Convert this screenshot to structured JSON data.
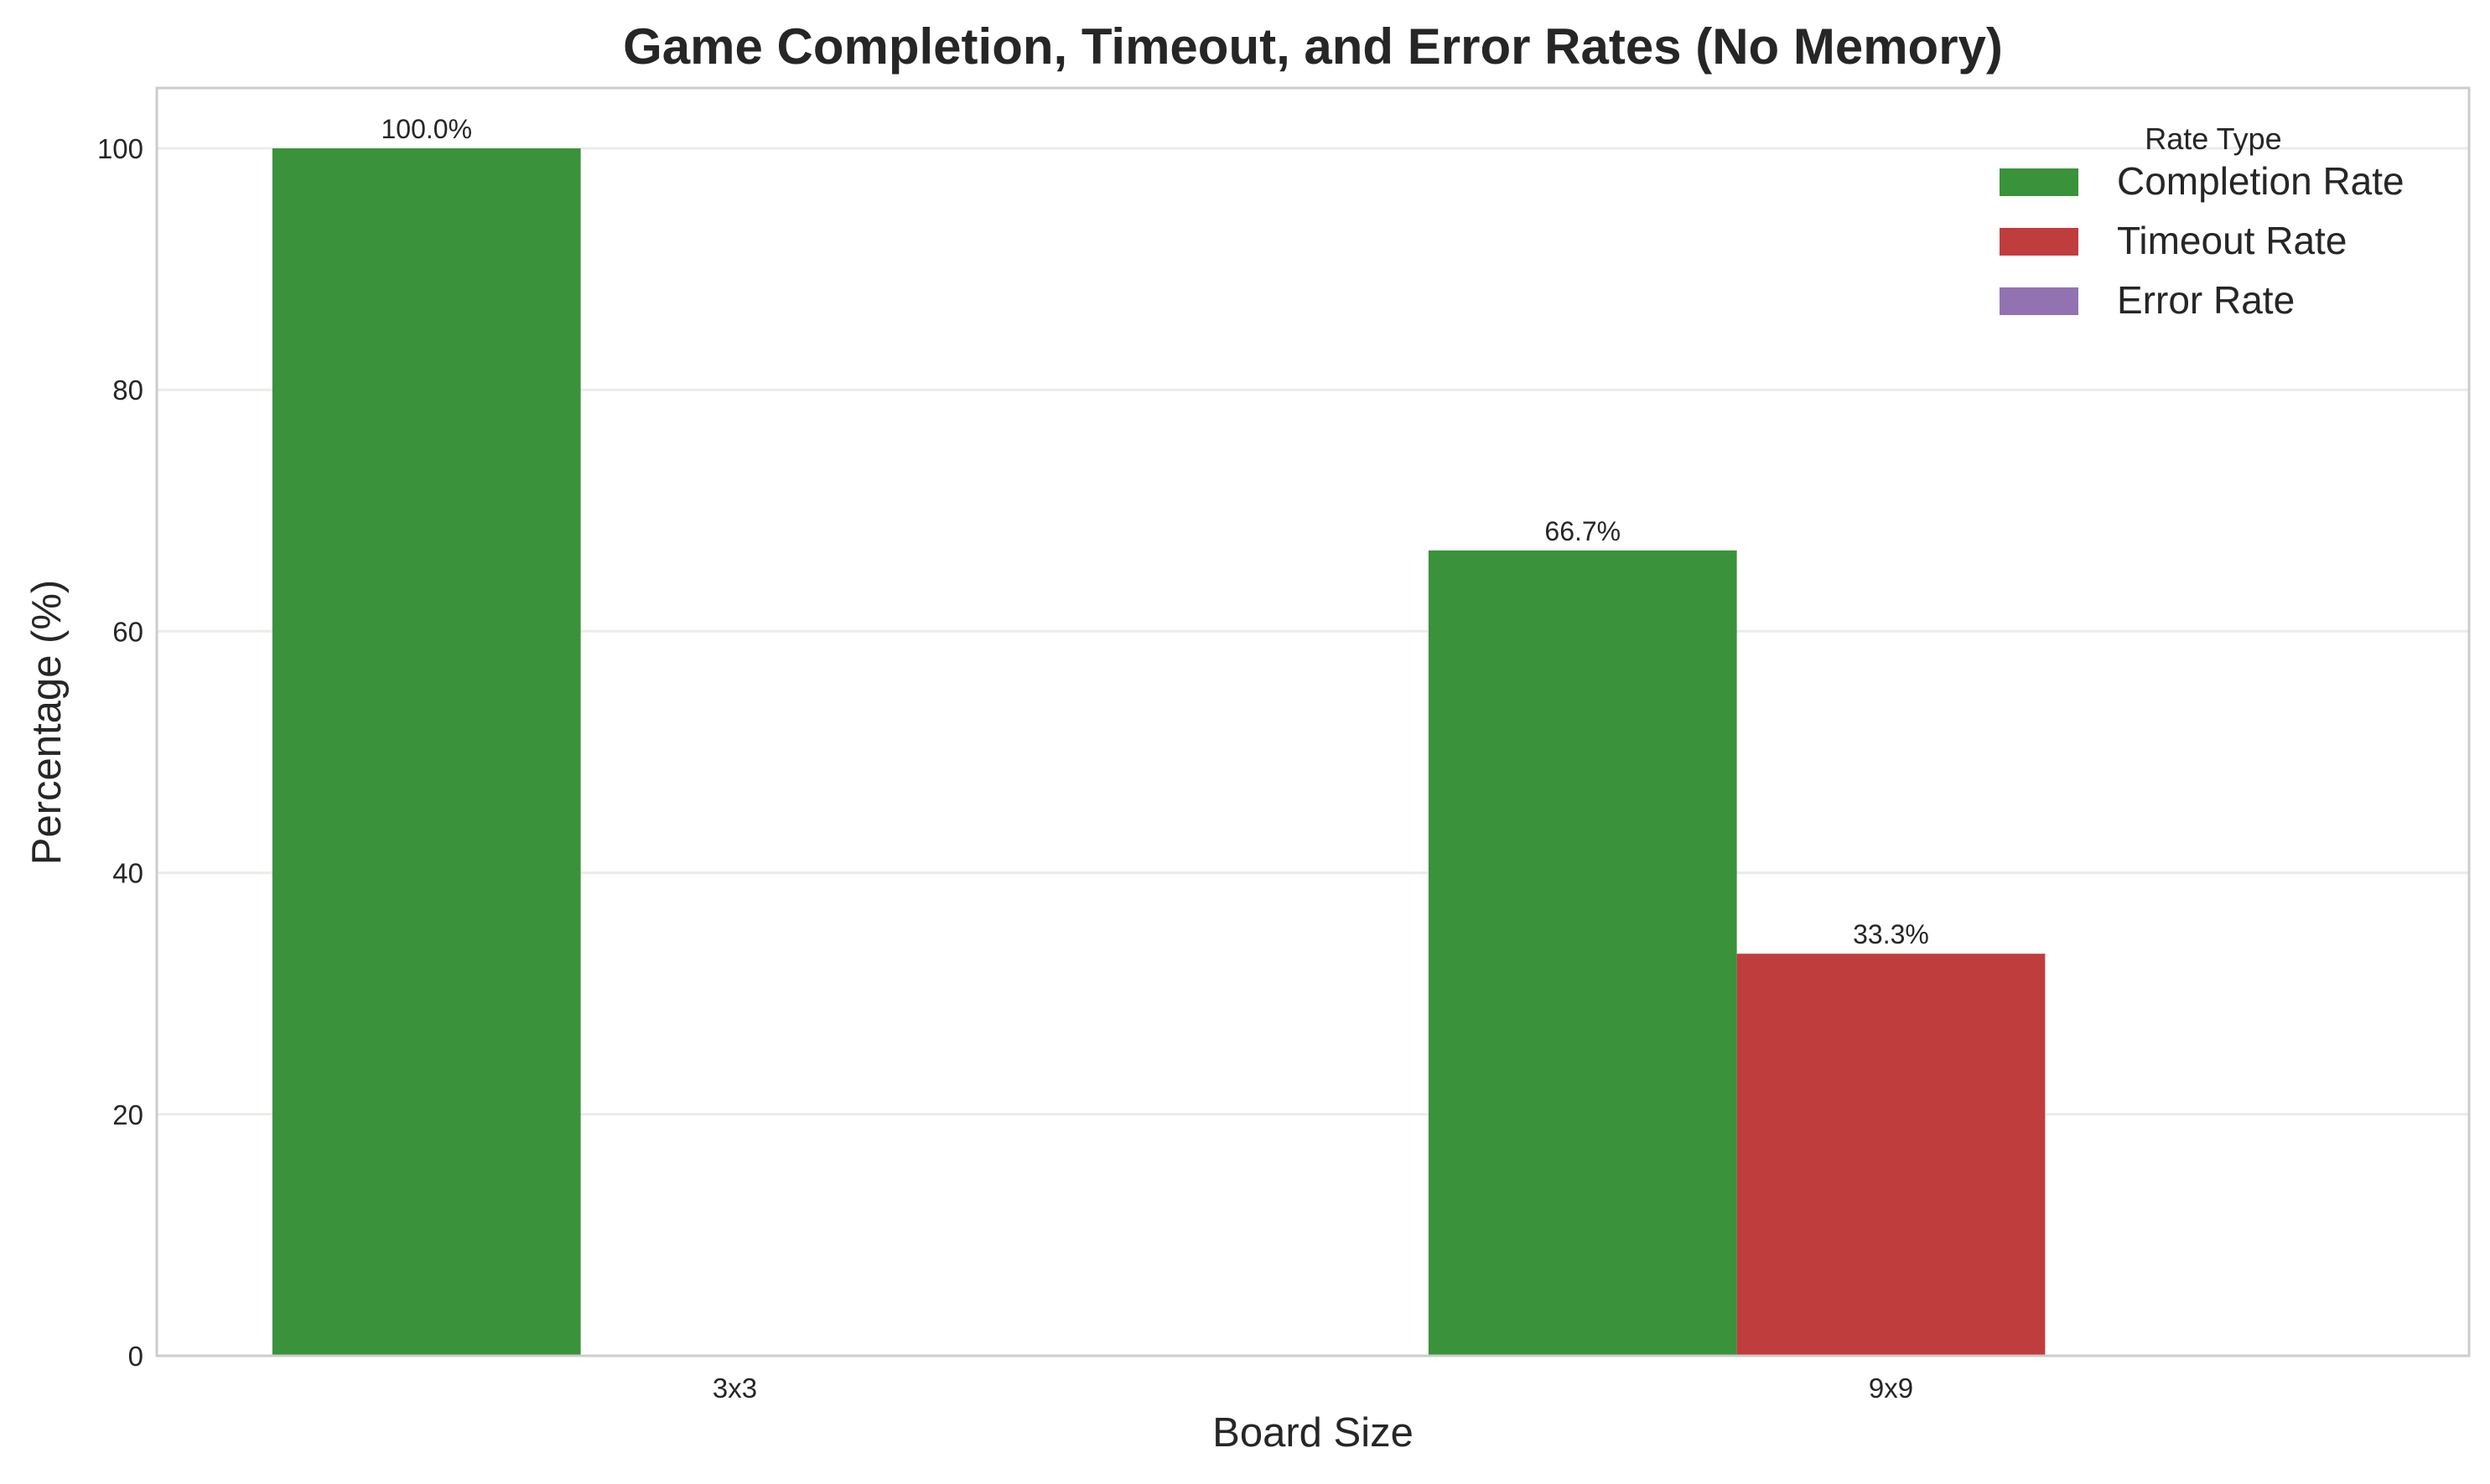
{
  "chart_data": {
    "type": "bar",
    "title": "Game Completion, Timeout, and Error Rates (No Memory)",
    "xlabel": "Board Size",
    "ylabel": "Percentage (%)",
    "categories": [
      "3x3",
      "9x9"
    ],
    "series": [
      {
        "name": "Completion Rate",
        "color": "#3a923a",
        "values": [
          100.0,
          66.7
        ],
        "labels": [
          "100.0%",
          "66.7%"
        ]
      },
      {
        "name": "Timeout Rate",
        "color": "#c03d3e",
        "values": [
          0.0,
          33.3
        ],
        "labels": [
          "",
          "33.3%"
        ]
      },
      {
        "name": "Error Rate",
        "color": "#9372b2",
        "values": [
          0.0,
          0.0
        ],
        "labels": [
          "",
          ""
        ]
      }
    ],
    "ylim": [
      0,
      105
    ],
    "yticks": [
      0,
      20,
      40,
      60,
      80,
      100
    ],
    "grid": true,
    "legend": {
      "title": "Rate Type",
      "position": "top-right"
    }
  }
}
